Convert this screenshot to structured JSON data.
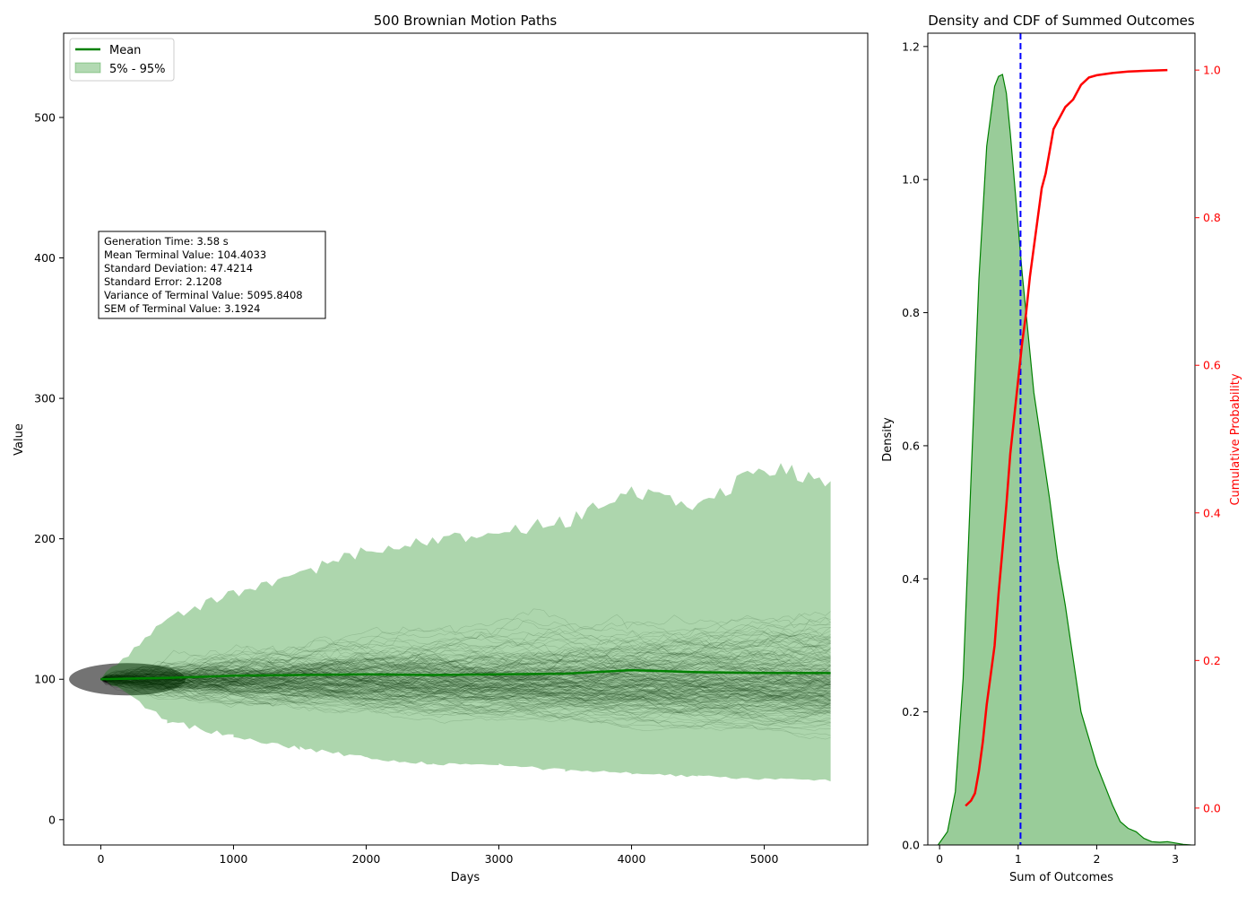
{
  "chart_data": [
    {
      "type": "line",
      "title": "500 Brownian Motion Paths",
      "xlabel": "Days",
      "ylabel": "Value",
      "xlim": [
        -280,
        5780
      ],
      "ylim": [
        -18,
        560
      ],
      "xticks": [
        0,
        1000,
        2000,
        3000,
        4000,
        5000
      ],
      "xtick_labels": [
        "0",
        "1000",
        "2000",
        "3000",
        "4000",
        "5000"
      ],
      "yticks": [
        0,
        100,
        200,
        300,
        400,
        500
      ],
      "ytick_labels": [
        "0",
        "100",
        "200",
        "300",
        "400",
        "500"
      ],
      "n_paths": 500,
      "x_end": 5500,
      "start_value": 100,
      "legend": {
        "position": "upper-left",
        "entries": [
          {
            "label": "Mean",
            "color": "#008000",
            "kind": "line"
          },
          {
            "label": "5% - 95%",
            "color": "#008000",
            "kind": "patch"
          }
        ]
      },
      "series": [
        {
          "name": "Mean",
          "color": "#008000",
          "x": [
            0,
            500,
            1000,
            1500,
            2000,
            2500,
            3000,
            3500,
            4000,
            4500,
            5000,
            5500
          ],
          "y": [
            100,
            101,
            102.5,
            103,
            103.5,
            103,
            103.5,
            104,
            106.5,
            105,
            104.5,
            104.4
          ]
        },
        {
          "name": "5% - 95%",
          "color": "#008000",
          "x": [
            0,
            500,
            1000,
            1500,
            2000,
            2500,
            3000,
            3500,
            4000,
            4500,
            5000,
            5500
          ],
          "upper": [
            100,
            142,
            162,
            175,
            192,
            198,
            205,
            212,
            232,
            225,
            250,
            242
          ],
          "lower": [
            100,
            70,
            59,
            51,
            44,
            40,
            39,
            35,
            33,
            31,
            29,
            28
          ]
        }
      ],
      "stats_box": [
        "Generation Time: 3.58 s",
        "Mean Terminal Value: 104.4033",
        "Standard Deviation: 47.4214",
        "Standard Error: 2.1208",
        "Variance of Terminal Value: 5095.8408",
        "SEM of Terminal Value: 3.1924"
      ]
    },
    {
      "type": "area",
      "title": "Density and CDF of Summed Outcomes",
      "xlabel": "Sum of Outcomes",
      "ylabel": "Density",
      "y2label": "Cumulative Probability",
      "xlim": [
        -0.15,
        3.25
      ],
      "ylim": [
        0,
        1.22
      ],
      "y2lim": [
        -0.05,
        1.05
      ],
      "xticks": [
        0,
        1,
        2,
        3
      ],
      "xtick_labels": [
        "0",
        "1",
        "2",
        "3"
      ],
      "yticks": [
        0,
        0.2,
        0.4,
        0.6,
        0.8,
        1.0,
        1.2
      ],
      "ytick_labels": [
        "0.0",
        "0.2",
        "0.4",
        "0.6",
        "0.8",
        "1.0",
        "1.2"
      ],
      "y2ticks": [
        0,
        0.2,
        0.4,
        0.6,
        0.8,
        1.0
      ],
      "y2tick_labels": [
        "0.0",
        "0.2",
        "0.4",
        "0.6",
        "0.8",
        "1.0"
      ],
      "density_color": "#008000",
      "cdf_color": "#ff0000",
      "vline": {
        "x": 1.03,
        "color": "#0000ff",
        "style": "dashed"
      },
      "density": {
        "x": [
          -0.02,
          0.1,
          0.2,
          0.3,
          0.4,
          0.5,
          0.6,
          0.7,
          0.75,
          0.8,
          0.85,
          0.9,
          0.95,
          1.0,
          1.05,
          1.1,
          1.2,
          1.3,
          1.4,
          1.5,
          1.6,
          1.7,
          1.8,
          1.9,
          2.0,
          2.1,
          2.2,
          2.3,
          2.4,
          2.5,
          2.6,
          2.7,
          2.8,
          2.9,
          3.0,
          3.1,
          3.2
        ],
        "y": [
          0.0,
          0.02,
          0.08,
          0.25,
          0.55,
          0.85,
          1.05,
          1.14,
          1.155,
          1.158,
          1.13,
          1.07,
          1.0,
          0.93,
          0.86,
          0.8,
          0.68,
          0.6,
          0.52,
          0.43,
          0.36,
          0.28,
          0.2,
          0.16,
          0.12,
          0.09,
          0.06,
          0.035,
          0.025,
          0.02,
          0.01,
          0.005,
          0.004,
          0.005,
          0.003,
          0.001,
          0.0
        ]
      },
      "cdf": {
        "x": [
          0.33,
          0.4,
          0.45,
          0.5,
          0.55,
          0.6,
          0.65,
          0.7,
          0.75,
          0.8,
          0.85,
          0.9,
          0.95,
          1.0,
          1.05,
          1.1,
          1.15,
          1.2,
          1.25,
          1.3,
          1.35,
          1.4,
          1.45,
          1.5,
          1.6,
          1.7,
          1.8,
          1.9,
          2.0,
          2.2,
          2.4,
          2.6,
          2.9
        ],
        "y": [
          0.003,
          0.01,
          0.02,
          0.05,
          0.09,
          0.14,
          0.18,
          0.22,
          0.29,
          0.35,
          0.41,
          0.48,
          0.53,
          0.58,
          0.63,
          0.67,
          0.72,
          0.76,
          0.8,
          0.84,
          0.86,
          0.89,
          0.92,
          0.93,
          0.95,
          0.96,
          0.98,
          0.99,
          0.993,
          0.996,
          0.998,
          0.999,
          1.0
        ]
      }
    }
  ]
}
